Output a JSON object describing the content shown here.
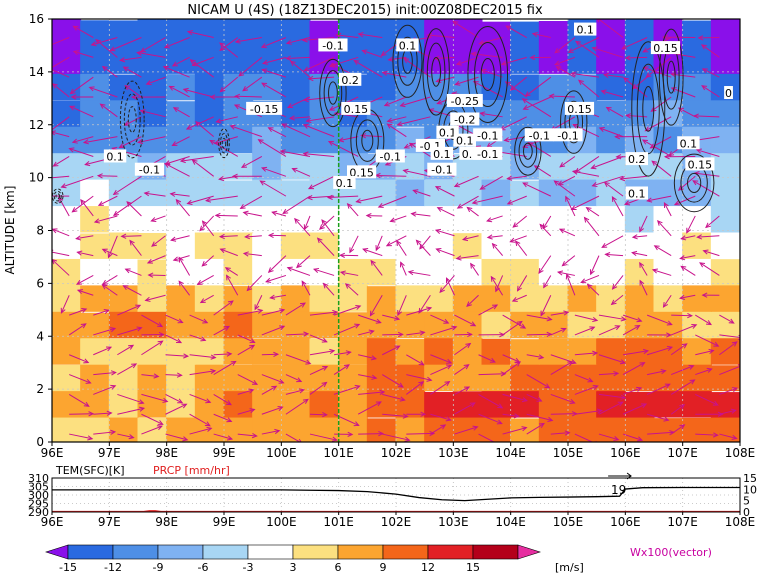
{
  "title": "NICAM U (4S) (18Z13DEC2015) init:00Z08DEC2015 fix",
  "chart_data": [
    {
      "type": "heatmap",
      "title": "NICAM U (4S) (18Z13DEC2015) init:00Z08DEC2015 fix",
      "xlabel": "",
      "ylabel": "ALTITUDE [km]",
      "x_ticks": [
        "96E",
        "97E",
        "98E",
        "99E",
        "100E",
        "101E",
        "102E",
        "103E",
        "104E",
        "105E",
        "106E",
        "107E",
        "108E"
      ],
      "x_values": [
        96,
        97,
        98,
        99,
        100,
        101,
        102,
        103,
        104,
        105,
        106,
        107,
        108
      ],
      "y_ticks": [
        "0",
        "2",
        "4",
        "6",
        "8",
        "10",
        "12",
        "14",
        "16"
      ],
      "y_values": [
        0,
        2,
        4,
        6,
        8,
        10,
        12,
        14,
        16
      ],
      "xlim": [
        96,
        108
      ],
      "ylim": [
        0,
        16
      ],
      "grid": true,
      "marker_line_x": 101,
      "u_by_altitude_band": [
        {
          "alt": [
            0,
            1
          ],
          "u_west": 6,
          "u_east": 12
        },
        {
          "alt": [
            1,
            2
          ],
          "u_west": 6,
          "u_east": 15
        },
        {
          "alt": [
            2,
            3
          ],
          "u_west": 6,
          "u_east": 12
        },
        {
          "alt": [
            3,
            4
          ],
          "u_west": 6,
          "u_east": 9
        },
        {
          "alt": [
            4,
            5
          ],
          "u_west": 9,
          "u_east": 6
        },
        {
          "alt": [
            5,
            6
          ],
          "u_west": 6,
          "u_east": 6
        },
        {
          "alt": [
            6,
            7
          ],
          "u_west": 3,
          "u_east": 3
        },
        {
          "alt": [
            7,
            8
          ],
          "u_west": 3,
          "u_east": 3
        },
        {
          "alt": [
            8,
            9
          ],
          "u_west": 3,
          "u_east": -3
        },
        {
          "alt": [
            9,
            10
          ],
          "u_west": -3,
          "u_east": -6
        },
        {
          "alt": [
            10,
            11
          ],
          "u_west": -6,
          "u_east": -6
        },
        {
          "alt": [
            11,
            12
          ],
          "u_west": -9,
          "u_east": -9
        },
        {
          "alt": [
            12,
            13
          ],
          "u_west": -12,
          "u_east": -9
        },
        {
          "alt": [
            13,
            14
          ],
          "u_west": -12,
          "u_east": -12
        },
        {
          "alt": [
            14,
            16
          ],
          "u_west": -15,
          "u_east": -15
        }
      ],
      "contour_labels": [
        {
          "x": 100.9,
          "y": 15.0,
          "text": "-0.1"
        },
        {
          "x": 102.2,
          "y": 15.0,
          "text": "0.1"
        },
        {
          "x": 105.3,
          "y": 15.6,
          "text": "0.1"
        },
        {
          "x": 106.7,
          "y": 14.9,
          "text": "0.15"
        },
        {
          "x": 101.2,
          "y": 13.7,
          "text": "0.2"
        },
        {
          "x": 101.3,
          "y": 12.6,
          "text": "0.15"
        },
        {
          "x": 99.7,
          "y": 12.6,
          "text": "-0.15"
        },
        {
          "x": 103.2,
          "y": 12.9,
          "text": "-0.25"
        },
        {
          "x": 103.2,
          "y": 12.2,
          "text": "-0.2"
        },
        {
          "x": 105.2,
          "y": 12.6,
          "text": "0.15"
        },
        {
          "x": 102.9,
          "y": 11.7,
          "text": "0.1"
        },
        {
          "x": 103.2,
          "y": 11.4,
          "text": "0.1"
        },
        {
          "x": 103.6,
          "y": 11.6,
          "text": "-0.1"
        },
        {
          "x": 104.5,
          "y": 11.6,
          "text": "-0.1"
        },
        {
          "x": 105.0,
          "y": 11.6,
          "text": "-0.1"
        },
        {
          "x": 102.6,
          "y": 11.2,
          "text": "-0.1"
        },
        {
          "x": 101.9,
          "y": 10.8,
          "text": "-0.1"
        },
        {
          "x": 102.8,
          "y": 10.9,
          "text": "0.1"
        },
        {
          "x": 103.3,
          "y": 10.9,
          "text": "0.1"
        },
        {
          "x": 103.6,
          "y": 10.9,
          "text": "-0.1"
        },
        {
          "x": 102.8,
          "y": 10.3,
          "text": "-0.1"
        },
        {
          "x": 101.4,
          "y": 10.2,
          "text": "0.15"
        },
        {
          "x": 101.1,
          "y": 9.8,
          "text": "0.1"
        },
        {
          "x": 106.2,
          "y": 10.7,
          "text": "0.2"
        },
        {
          "x": 107.1,
          "y": 11.3,
          "text": "0.1"
        },
        {
          "x": 107.3,
          "y": 10.5,
          "text": "0.15"
        },
        {
          "x": 106.2,
          "y": 9.4,
          "text": "0.1"
        },
        {
          "x": 97.1,
          "y": 10.8,
          "text": "0.1"
        },
        {
          "x": 97.7,
          "y": 10.3,
          "text": "-0.1"
        },
        {
          "x": 107.8,
          "y": 13.2,
          "text": "0"
        }
      ]
    },
    {
      "type": "line",
      "title": "",
      "x_ticks": [
        "96E",
        "97E",
        "98E",
        "99E",
        "100E",
        "101E",
        "102E",
        "103E",
        "104E",
        "105E",
        "106E",
        "107E",
        "108E"
      ],
      "y_left_label": "TEM(SFC)[K]",
      "y_right_label": "PRCP [mm/hr]",
      "y_left_ticks": [
        "290",
        "295",
        "300",
        "305",
        "310"
      ],
      "y_right_ticks": [
        "0",
        "5",
        "10",
        "15"
      ],
      "ylim_left": [
        290,
        310
      ],
      "ylim_right": [
        0,
        15
      ],
      "peak_label": "19",
      "series": [
        {
          "name": "TEM(SFC)[K]",
          "x": [
            96,
            97,
            98,
            99,
            100,
            100.5,
            101,
            101.5,
            102,
            102.4,
            102.8,
            103.2,
            103.6,
            104,
            104.5,
            105,
            105.5,
            105.9,
            106.0,
            106.3,
            107,
            108
          ],
          "values": [
            303,
            303,
            303,
            303,
            303,
            302.8,
            302.6,
            302,
            300.5,
            298.5,
            297.2,
            296.7,
            297.5,
            298.3,
            298.6,
            298.8,
            299,
            299.3,
            303.5,
            304.3,
            304.4,
            304.4
          ]
        },
        {
          "name": "PRCP [mm/hr]",
          "x": [
            96,
            97.6,
            97.7,
            97.8,
            97.9,
            108
          ],
          "values": [
            0,
            0,
            0.3,
            0.3,
            0,
            0
          ]
        }
      ]
    }
  ],
  "colorbar": {
    "ticks": [
      "-15",
      "-12",
      "-9",
      "-6",
      "-3",
      "3",
      "6",
      "9",
      "12",
      "15"
    ],
    "colors": [
      "#8a10ea",
      "#2a6ae0",
      "#4e8fe6",
      "#7fb2f2",
      "#a8d6f4",
      "#ffffff",
      "#fce080",
      "#fca530",
      "#f4661a",
      "#e22025",
      "#b4001a",
      "#e62ea0"
    ],
    "unit": "[m/s]",
    "vector_label": "Wx100(vector)"
  }
}
